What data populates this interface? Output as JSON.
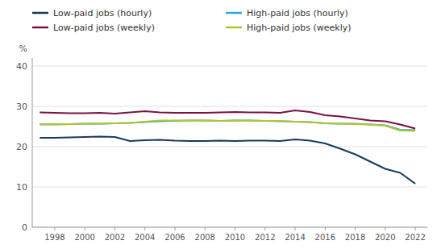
{
  "chart_data": {
    "type": "line",
    "ylabel": "%",
    "x": [
      1997,
      1998,
      1999,
      2000,
      2001,
      2002,
      2003,
      2004,
      2005,
      2006,
      2007,
      2008,
      2009,
      2010,
      2011,
      2012,
      2013,
      2014,
      2015,
      2016,
      2017,
      2018,
      2019,
      2020,
      2021,
      2022
    ],
    "series": [
      {
        "name": "Low-paid jobs (hourly)",
        "color": "#1a3a5c",
        "values": [
          22.2,
          22.2,
          22.3,
          22.4,
          22.5,
          22.4,
          21.4,
          21.6,
          21.7,
          21.5,
          21.4,
          21.4,
          21.5,
          21.4,
          21.5,
          21.5,
          21.4,
          21.8,
          21.5,
          20.8,
          19.5,
          18.1,
          16.3,
          14.5,
          13.5,
          10.8
        ]
      },
      {
        "name": "High-paid jobs (hourly)",
        "color": "#29abe2",
        "values": [
          25.5,
          25.5,
          25.6,
          25.7,
          25.7,
          25.8,
          25.9,
          26.1,
          26.3,
          26.4,
          26.5,
          26.5,
          26.4,
          26.5,
          26.5,
          26.4,
          26.3,
          26.2,
          26.1,
          25.8,
          25.7,
          25.7,
          25.5,
          25.3,
          24.2,
          24.1
        ]
      },
      {
        "name": "Low-paid jobs (weekly)",
        "color": "#7b1145",
        "values": [
          28.5,
          28.4,
          28.3,
          28.3,
          28.4,
          28.2,
          28.5,
          28.8,
          28.5,
          28.4,
          28.4,
          28.4,
          28.5,
          28.6,
          28.5,
          28.5,
          28.4,
          29.0,
          28.6,
          27.8,
          27.5,
          27.0,
          26.5,
          26.3,
          25.5,
          24.5
        ]
      },
      {
        "name": "High-paid jobs (weekly)",
        "color": "#b5c426",
        "values": [
          25.6,
          25.6,
          25.6,
          25.7,
          25.7,
          25.8,
          25.9,
          26.2,
          26.5,
          26.5,
          26.5,
          26.5,
          26.4,
          26.5,
          26.5,
          26.4,
          26.4,
          26.2,
          26.1,
          25.8,
          25.7,
          25.6,
          25.5,
          25.2,
          24.0,
          23.9
        ]
      }
    ],
    "xlim": [
      1996.5,
      2022.8
    ],
    "xticks": [
      1998,
      2000,
      2002,
      2004,
      2006,
      2008,
      2010,
      2012,
      2014,
      2016,
      2018,
      2020,
      2022
    ],
    "ylim": [
      0,
      42
    ],
    "yticks": [
      0,
      10,
      20,
      30,
      40
    ],
    "grid": true,
    "legend": "top"
  }
}
